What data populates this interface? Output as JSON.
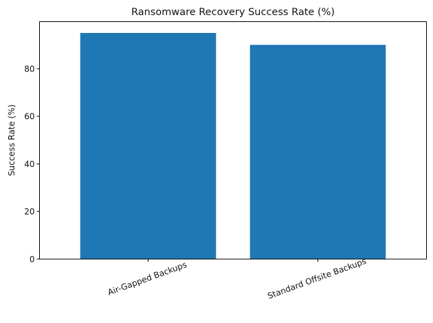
{
  "chart_data": {
    "type": "bar",
    "title": "Ransomware Recovery Success Rate (%)",
    "xlabel": "",
    "ylabel": "Success Rate (%)",
    "categories": [
      "Air-Gapped Backups",
      "Standard Offsite Backups"
    ],
    "values": [
      95,
      90
    ],
    "ylim": [
      0,
      99.75
    ],
    "yticks": [
      0,
      20,
      40,
      60,
      80
    ],
    "ytick_labels": [
      "0",
      "20",
      "40",
      "60",
      "80"
    ],
    "bar_color": "#1f77b4",
    "grid": false,
    "legend": null,
    "xtick_rotation": -20
  }
}
